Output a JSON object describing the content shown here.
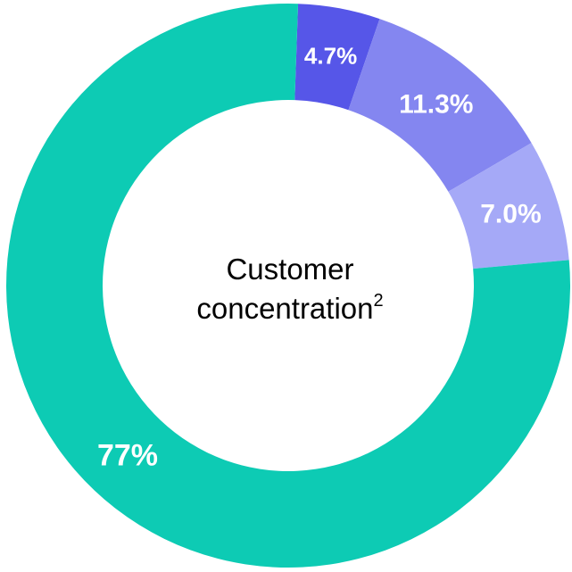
{
  "chart_data": {
    "type": "pie",
    "slices": [
      {
        "value": 4.7,
        "label": "4.7%",
        "color": "#5656e8"
      },
      {
        "value": 11.3,
        "label": "11.3%",
        "color": "#8486f0"
      },
      {
        "value": 7.0,
        "label": "7.0%",
        "color": "#a5a9f7"
      },
      {
        "value": 77,
        "label": "77%",
        "color": "#0dcbb4"
      }
    ],
    "start": "near 12 o'clock",
    "direction": "clockwise"
  },
  "center_label": {
    "line1": "Customer",
    "line2": "concentration",
    "footnote_marker": "2"
  }
}
